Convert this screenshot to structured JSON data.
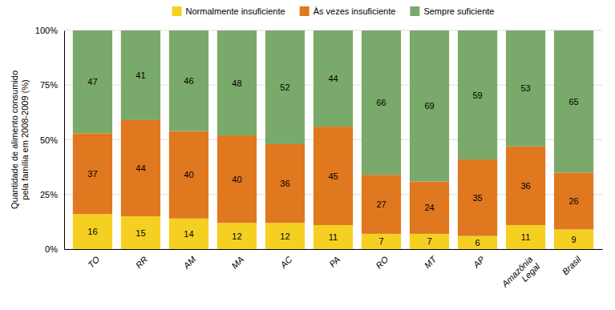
{
  "chart_data": {
    "type": "bar",
    "stacked": true,
    "categories": [
      "TO",
      "RR",
      "AM",
      "MA",
      "AC",
      "PA",
      "RO",
      "MT",
      "AP",
      "Amazônia\nLegal",
      "Brasil"
    ],
    "series": [
      {
        "name": "Normalmente insuficiente",
        "color": "#f5d022",
        "values": [
          16,
          15,
          14,
          12,
          12,
          11,
          7,
          7,
          6,
          11,
          9
        ]
      },
      {
        "name": "Às vezes insuficiente",
        "color": "#e07820",
        "values": [
          37,
          44,
          40,
          40,
          36,
          45,
          27,
          24,
          35,
          36,
          26
        ]
      },
      {
        "name": "Sempre suficiente",
        "color": "#7aaa6b",
        "values": [
          47,
          41,
          46,
          48,
          52,
          44,
          66,
          69,
          59,
          53,
          65
        ]
      }
    ],
    "y_label": "Quantidade de alimento consumido\npela família em 2008-2009 (%)",
    "ylim": [
      0,
      100
    ],
    "yticks": [
      {
        "value": 0,
        "label": "0%"
      },
      {
        "value": 25,
        "label": "25%"
      },
      {
        "value": 50,
        "label": "50%"
      },
      {
        "value": 75,
        "label": "75%"
      },
      {
        "value": 100,
        "label": "100%"
      }
    ],
    "grid": true,
    "legend": "top",
    "data_labels": true
  }
}
